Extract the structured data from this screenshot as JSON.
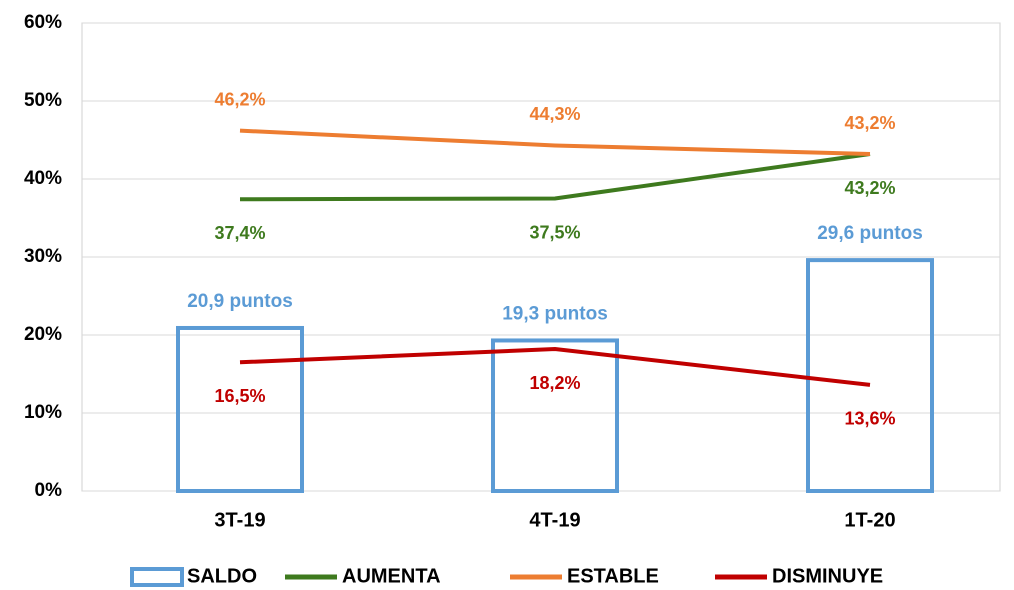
{
  "chart_data": {
    "type": "combo",
    "categories": [
      "3T-19",
      "4T-19",
      "1T-20"
    ],
    "ylim": [
      0,
      60
    ],
    "yticks": [
      {
        "value": 0,
        "label": "0%"
      },
      {
        "value": 10,
        "label": "10%"
      },
      {
        "value": 20,
        "label": "20%"
      },
      {
        "value": 30,
        "label": "30%"
      },
      {
        "value": 40,
        "label": "40%"
      },
      {
        "value": 50,
        "label": "50%"
      },
      {
        "value": 60,
        "label": "60%"
      }
    ],
    "grid": true,
    "legend": "bottom",
    "series": [
      {
        "name": "SALDO",
        "type": "bar",
        "color": "#5b9bd5",
        "values": [
          20.9,
          19.3,
          29.6
        ],
        "value_labels": [
          "20,9 puntos",
          "19,3 puntos",
          "29,6 puntos"
        ],
        "label_position": "above"
      },
      {
        "name": "AUMENTA",
        "type": "line",
        "color": "#3e7a1e",
        "values": [
          37.4,
          37.5,
          43.2
        ],
        "value_labels": [
          "37,4%",
          "37,5%",
          "43,2%"
        ],
        "label_position": "below"
      },
      {
        "name": "ESTABLE",
        "type": "line",
        "color": "#ed7d31",
        "values": [
          46.2,
          44.3,
          43.2
        ],
        "value_labels": [
          "46,2%",
          "44,3%",
          "43,2%"
        ],
        "label_position": "above"
      },
      {
        "name": "DISMINUYE",
        "type": "line",
        "color": "#c00000",
        "values": [
          16.5,
          18.2,
          13.6
        ],
        "value_labels": [
          "16,5%",
          "18,2%",
          "13,6%"
        ],
        "label_position": "below"
      }
    ]
  }
}
